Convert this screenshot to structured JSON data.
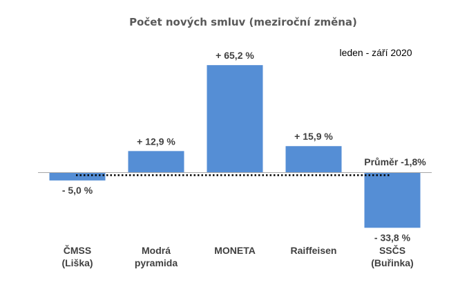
{
  "chart_data": {
    "type": "bar",
    "title": "Počet nových smluv (meziroční změna)",
    "subtitle": "leden - září 2020",
    "categories": [
      [
        "ČMSS",
        "(Liška)"
      ],
      [
        "Modrá",
        "pyramida"
      ],
      [
        "MONETA"
      ],
      [
        "Raiffeisen"
      ],
      [
        "SSČS",
        "(Buřinka)"
      ]
    ],
    "values": [
      -5.0,
      12.9,
      65.2,
      15.9,
      -33.8
    ],
    "data_labels": [
      "- 5,0 %",
      "+ 12,9 %",
      "+ 65,2 %",
      "+ 15,9 %",
      "- 33,8 %"
    ],
    "average": {
      "value": -1.8,
      "label": "Průměr -1,8%"
    },
    "ylim": [
      -35,
      70
    ],
    "colors": {
      "bar": "#558ED5",
      "axis": "#A6A6A6",
      "average_line": "#000000"
    },
    "xlabel": "",
    "ylabel": "",
    "legend": "none",
    "grid": false
  }
}
